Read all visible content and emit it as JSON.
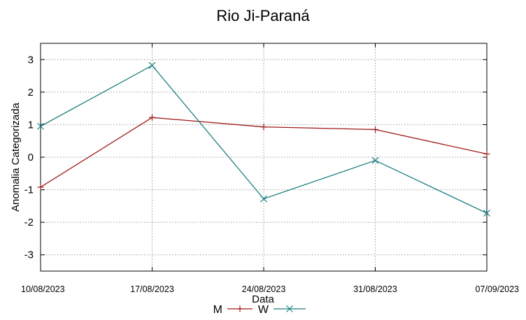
{
  "chart_data": {
    "type": "line",
    "title": "Rio Ji-Paraná",
    "xlabel": "Data",
    "ylabel": "Anomalia Categorizada",
    "categories": [
      "10/08/2023",
      "17/08/2023",
      "24/08/2023",
      "31/08/2023",
      "07/09/2023"
    ],
    "yticks": [
      -3,
      -2,
      -1,
      0,
      1,
      2,
      3
    ],
    "ylim": [
      -3.5,
      3.5
    ],
    "grid": true,
    "legend_position": "bottom-center",
    "series": [
      {
        "name": "M",
        "marker": "+",
        "color": "#a01818",
        "values": [
          -0.92,
          1.22,
          0.93,
          0.85,
          0.1
        ]
      },
      {
        "name": "W",
        "marker": "x",
        "color": "#1f8080",
        "values": [
          0.95,
          2.82,
          -1.28,
          -0.1,
          -1.72
        ]
      }
    ]
  }
}
